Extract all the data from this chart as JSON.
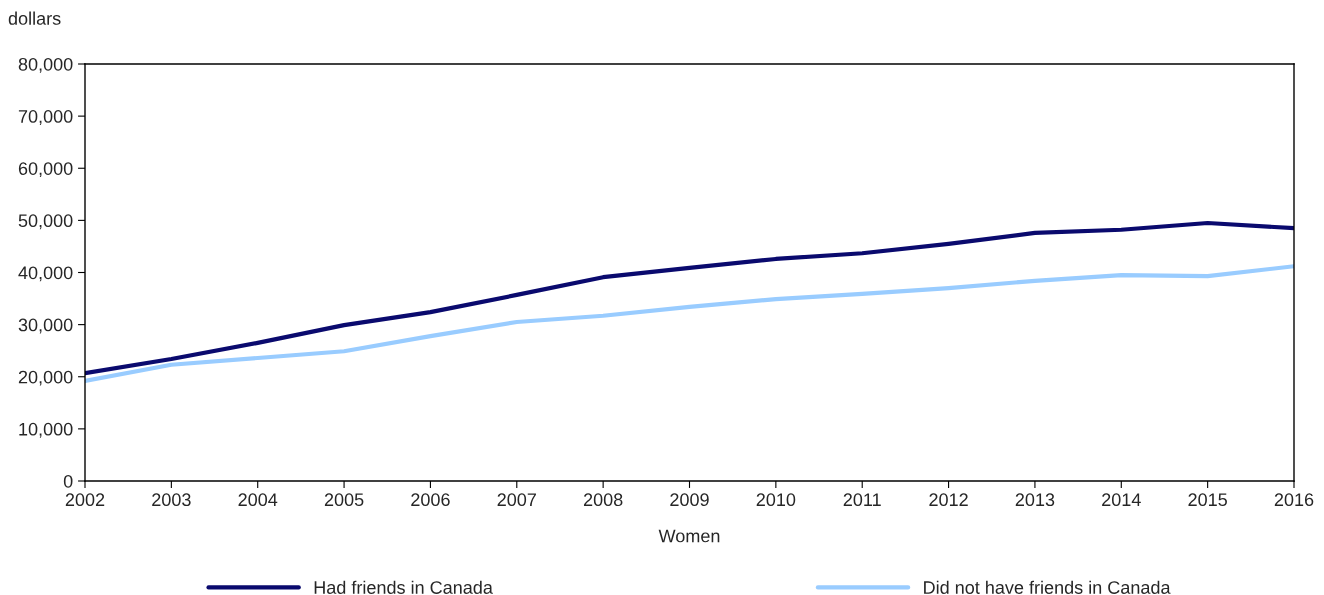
{
  "chart_data": {
    "type": "line",
    "xlabel": "Women",
    "ylabel": "dollars",
    "x": [
      2002,
      2003,
      2004,
      2005,
      2006,
      2007,
      2008,
      2009,
      2010,
      2011,
      2012,
      2013,
      2014,
      2015,
      2016
    ],
    "series": [
      {
        "name": "Had friends in Canada",
        "color": "#0a0a6e",
        "values": [
          20700,
          23400,
          26500,
          29900,
          32400,
          35700,
          39100,
          40900,
          42600,
          43700,
          45500,
          47600,
          48200,
          49500,
          48500
        ]
      },
      {
        "name": "Did not have friends in Canada",
        "color": "#99ccff",
        "values": [
          19200,
          22300,
          23600,
          24900,
          27800,
          30500,
          31700,
          33400,
          34900,
          35900,
          37000,
          38400,
          39500,
          39300,
          41200
        ]
      }
    ],
    "xlim": [
      2002,
      2016
    ],
    "xticks": [
      2002,
      2003,
      2004,
      2005,
      2006,
      2007,
      2008,
      2009,
      2010,
      2011,
      2012,
      2013,
      2014,
      2015,
      2016
    ],
    "ylim": [
      0,
      80000
    ],
    "yticks": [
      {
        "value": 0,
        "label": "0"
      },
      {
        "value": 10000,
        "label": "10,000"
      },
      {
        "value": 20000,
        "label": "20,000"
      },
      {
        "value": 30000,
        "label": "30,000"
      },
      {
        "value": 40000,
        "label": "40,000"
      },
      {
        "value": 50000,
        "label": "50,000"
      },
      {
        "value": 60000,
        "label": "60,000"
      },
      {
        "value": 70000,
        "label": "70,000"
      },
      {
        "value": 80000,
        "label": "80,000"
      }
    ],
    "grid": false,
    "legend": "bottom",
    "marker": "none",
    "line_style": "solid"
  }
}
